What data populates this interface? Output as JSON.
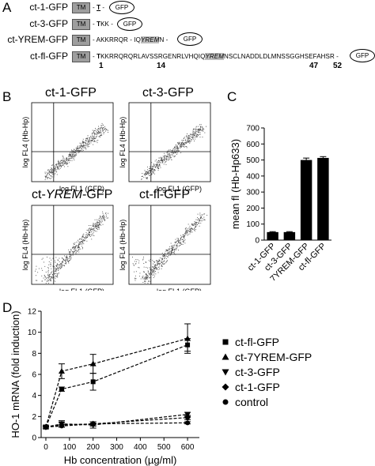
{
  "panel_a": {
    "letter": "A",
    "tm_label": "TM",
    "gfp_label": "GFP",
    "constructs": [
      {
        "name": "ct-1-GFP",
        "seq_pre": "- ",
        "seq_ul": "T",
        "seq_post": " -",
        "seq_yrem": "",
        "seq_tail": ""
      },
      {
        "name": "ct-3-GFP",
        "seq_pre": "- ",
        "seq_ul": "T",
        "seq_post": "KK -",
        "seq_yrem": "",
        "seq_tail": ""
      },
      {
        "name": "ct-YREM-GFP",
        "seq_pre": "- AKKRRQR - IQ",
        "seq_ul": "",
        "seq_post": "",
        "seq_yrem": "YREM",
        "seq_tail": "N -"
      },
      {
        "name": "ct-fl-GFP",
        "seq_pre": "- ",
        "seq_ul": "T",
        "seq_post": "KKRRQRQRLAVSSRGENRLVHQIQ",
        "seq_yrem": "YREM",
        "seq_tail": "NSCLNADDLDLMNSSGGHSEFAHSR -"
      }
    ],
    "indices": [
      "1",
      "14",
      "47",
      "52"
    ]
  },
  "panel_b": {
    "letter": "B",
    "plots": [
      {
        "title": "ct-1-GFP"
      },
      {
        "title": "ct-3-GFP"
      },
      {
        "title_pre": "ct-",
        "title_ital": "YREM",
        "title_post": "-GFP"
      },
      {
        "title": "ct-fl-GFP"
      }
    ],
    "xlabel": "log FL1 (GFP)",
    "ylabel": "log FL4 (Hb-Hp)"
  },
  "chart_data": [
    {
      "type": "bar",
      "panel": "C",
      "categories": [
        "ct-1-GFP",
        "ct-3-GFP",
        "ct-7YREM-GFP",
        "ct-fl-GFP"
      ],
      "values": [
        50,
        50,
        500,
        513
      ],
      "errors": [
        3,
        3,
        12,
        8
      ],
      "ylabel": "mean fl (Hb-Hp633)",
      "ylim": [
        0,
        700
      ],
      "yticks": [
        0,
        100,
        200,
        300,
        400,
        500,
        600,
        700
      ],
      "color": "#000000"
    },
    {
      "type": "line",
      "panel": "D",
      "xlabel": "Hb concentration (µg/ml)",
      "ylabel": "HO-1 mRNA (fold induction)",
      "xlim": [
        -20,
        650
      ],
      "ylim": [
        0,
        12
      ],
      "xticks": [
        0,
        100,
        200,
        300,
        400,
        500,
        600
      ],
      "yticks": [
        0,
        2,
        4,
        6,
        8,
        10,
        12
      ],
      "legend_position": "right",
      "series": [
        {
          "name": "ct-fl-GFP",
          "marker": "square",
          "x": [
            0,
            67,
            200,
            600
          ],
          "y": [
            1.0,
            4.6,
            5.3,
            8.8
          ],
          "err": [
            0.1,
            0.2,
            0.8,
            0.6
          ]
        },
        {
          "name": "ct-7YREM-GFP",
          "marker": "triangle-up",
          "x": [
            0,
            67,
            200,
            600
          ],
          "y": [
            1.0,
            6.3,
            7.0,
            9.4
          ],
          "err": [
            0.1,
            0.7,
            0.9,
            1.4
          ]
        },
        {
          "name": "ct-3-GFP",
          "marker": "triangle-down",
          "x": [
            0,
            67,
            200,
            600
          ],
          "y": [
            1.0,
            1.3,
            1.2,
            2.2
          ],
          "err": [
            0.1,
            0.3,
            0.3,
            0.2
          ]
        },
        {
          "name": "ct-1-GFP",
          "marker": "diamond",
          "x": [
            0,
            67,
            200,
            600
          ],
          "y": [
            1.0,
            1.2,
            1.3,
            1.9
          ],
          "err": [
            0.1,
            0.2,
            0.2,
            0.2
          ]
        },
        {
          "name": "control",
          "marker": "circle",
          "x": [
            0,
            67,
            200,
            600
          ],
          "y": [
            1.0,
            1.1,
            1.3,
            1.4
          ],
          "err": [
            0.1,
            0.1,
            0.2,
            0.1
          ]
        }
      ]
    }
  ],
  "panel_letters": {
    "c": "C",
    "d": "D"
  }
}
